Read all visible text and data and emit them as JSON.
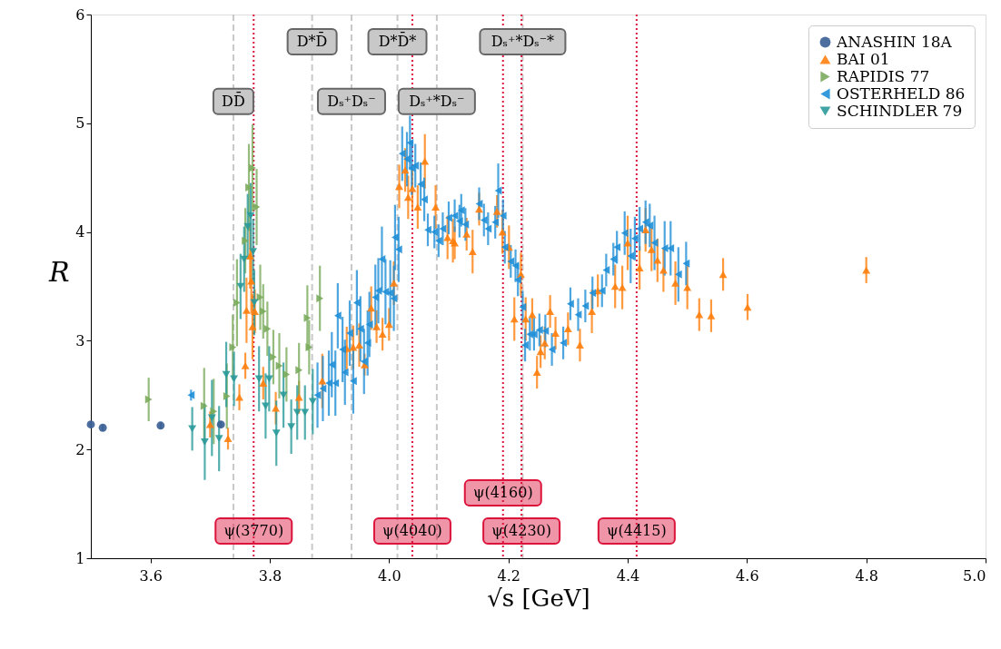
{
  "chart_data": {
    "type": "scatter",
    "xlabel": "√s [GeV]",
    "ylabel": "R",
    "xlim": [
      3.5,
      5.0
    ],
    "ylim": [
      1,
      6
    ],
    "xticks": [
      3.6,
      3.8,
      {
        "value": 4,
        "label": "4.0"
      },
      4.2,
      4.4,
      4.6,
      4.8,
      {
        "value": 5,
        "label": "5.0"
      }
    ],
    "yticks": [
      1,
      2,
      3,
      4,
      5,
      6
    ],
    "grid": false,
    "legend": "top right",
    "series": [
      {
        "name": "ANASHIN 18A",
        "color": "#3a5f95",
        "marker": "circle",
        "x": [
          3.5,
          3.52,
          3.617,
          3.718
        ],
        "values": [
          2.23,
          2.2,
          2.22,
          2.23
        ],
        "errors": [
          0.03,
          0.03,
          0.03,
          0.03
        ]
      },
      {
        "name": "BAI 01",
        "color": "#ff7f0e",
        "marker": "triangle-up",
        "x": [
          3.7,
          3.73,
          3.749,
          3.759,
          3.761,
          3.767,
          3.769,
          3.771,
          3.775,
          3.789,
          3.81,
          3.849,
          3.888,
          3.929,
          3.94,
          3.95,
          3.959,
          3.97,
          3.979,
          3.989,
          4.0,
          4.008,
          4.017,
          4.027,
          4.032,
          4.039,
          4.048,
          4.06,
          4.078,
          4.098,
          4.107,
          4.11,
          4.13,
          4.14,
          4.151,
          4.181,
          4.19,
          4.201,
          4.21,
          4.221,
          4.229,
          4.24,
          4.248,
          4.254,
          4.261,
          4.27,
          4.279,
          4.3,
          4.32,
          4.34,
          4.35,
          4.379,
          4.391,
          4.4,
          4.42,
          4.43,
          4.44,
          4.45,
          4.46,
          4.48,
          4.5,
          4.52,
          4.54,
          4.56,
          4.601,
          4.8
        ],
        "values": [
          2.23,
          2.1,
          2.48,
          2.77,
          3.28,
          3.78,
          3.55,
          3.13,
          3.27,
          2.61,
          2.38,
          2.48,
          2.63,
          2.93,
          2.94,
          2.96,
          2.78,
          3.3,
          3.13,
          3.06,
          3.15,
          3.53,
          4.42,
          4.57,
          4.32,
          4.4,
          4.23,
          4.65,
          4.23,
          3.95,
          3.92,
          3.9,
          3.98,
          3.82,
          4.21,
          4.19,
          4.0,
          3.86,
          3.2,
          3.61,
          3.2,
          3.24,
          2.71,
          2.9,
          2.98,
          3.27,
          3.07,
          3.11,
          2.96,
          3.27,
          3.46,
          3.5,
          3.49,
          3.9,
          3.67,
          4.02,
          3.84,
          3.74,
          3.65,
          3.53,
          3.49,
          3.24,
          3.23,
          3.61,
          3.31,
          3.65
        ],
        "errors": [
          0.12,
          0.1,
          0.12,
          0.12,
          0.3,
          0.3,
          0.3,
          0.3,
          0.2,
          0.15,
          0.15,
          0.15,
          0.25,
          0.2,
          0.2,
          0.2,
          0.1,
          0.2,
          0.15,
          0.15,
          0.15,
          0.2,
          0.2,
          0.2,
          0.2,
          0.2,
          0.2,
          0.25,
          0.2,
          0.2,
          0.2,
          0.15,
          0.15,
          0.2,
          0.15,
          0.15,
          0.2,
          0.2,
          0.2,
          0.2,
          0.2,
          0.15,
          0.15,
          0.15,
          0.15,
          0.15,
          0.15,
          0.15,
          0.15,
          0.2,
          0.15,
          0.2,
          0.2,
          0.25,
          0.2,
          0.2,
          0.2,
          0.2,
          0.2,
          0.2,
          0.2,
          0.15,
          0.15,
          0.15,
          0.12,
          0.12
        ]
      },
      {
        "name": "RAPIDIS 77",
        "color": "#7aab5c",
        "marker": "triangle-right",
        "x": [
          3.597,
          3.69,
          3.706,
          3.728,
          3.738,
          3.745,
          3.759,
          3.765,
          3.771,
          3.778,
          3.784,
          3.789,
          3.796,
          3.806,
          3.816,
          3.828,
          3.849,
          3.863,
          3.866,
          3.884
        ],
        "values": [
          2.46,
          2.4,
          2.35,
          2.49,
          2.94,
          3.35,
          3.92,
          4.41,
          4.59,
          4.23,
          3.4,
          3.27,
          3.11,
          2.85,
          2.77,
          2.69,
          2.73,
          3.21,
          2.94,
          3.39
        ],
        "errors": [
          0.2,
          0.35,
          0.3,
          0.3,
          0.3,
          0.4,
          0.3,
          0.4,
          0.4,
          0.35,
          0.3,
          0.25,
          0.25,
          0.25,
          0.3,
          0.25,
          0.25,
          0.3,
          0.25,
          0.3
        ]
      },
      {
        "name": "OSTERHELD 86",
        "color": "#1f8fd7",
        "marker": "triangle-left",
        "x": [
          3.668,
          3.88,
          3.889,
          3.899,
          3.904,
          3.91,
          3.914,
          3.922,
          3.926,
          3.934,
          3.94,
          3.946,
          3.952,
          3.958,
          3.964,
          3.967,
          3.977,
          3.982,
          3.988,
          3.994,
          4.002,
          4.008,
          4.01,
          4.016,
          4.022,
          4.03,
          4.035,
          4.038,
          4.044,
          4.053,
          4.059,
          4.065,
          4.076,
          4.083,
          4.09,
          4.1,
          4.11,
          4.118,
          4.121,
          4.128,
          4.151,
          4.159,
          4.166,
          4.178,
          4.183,
          4.191,
          4.194,
          4.204,
          4.212,
          4.216,
          4.224,
          4.228,
          4.236,
          4.243,
          4.252,
          4.262,
          4.273,
          4.292,
          4.304,
          4.317,
          4.329,
          4.341,
          4.357,
          4.364,
          4.376,
          4.382,
          4.395,
          4.405,
          4.412,
          4.42,
          4.43,
          4.437,
          4.445,
          4.462,
          4.472,
          4.485,
          4.498
        ],
        "values": [
          2.5,
          2.5,
          2.56,
          2.61,
          2.78,
          2.61,
          3.23,
          2.92,
          2.71,
          3.07,
          2.63,
          3.35,
          3.11,
          2.81,
          2.98,
          3.15,
          3.4,
          3.46,
          3.75,
          3.45,
          3.44,
          3.39,
          3.95,
          3.84,
          4.72,
          4.67,
          4.82,
          4.59,
          4.61,
          4.44,
          4.3,
          4.02,
          4.0,
          3.92,
          4.03,
          4.13,
          4.15,
          4.1,
          4.2,
          4.07,
          4.26,
          4.11,
          4.03,
          4.09,
          4.38,
          4.15,
          3.86,
          3.73,
          3.69,
          3.56,
          3.31,
          2.96,
          3.06,
          3.06,
          3.1,
          3.09,
          2.92,
          2.98,
          3.34,
          3.24,
          3.32,
          3.44,
          3.46,
          3.65,
          3.75,
          3.86,
          3.99,
          3.78,
          3.94,
          4.03,
          4.09,
          4.06,
          3.9,
          3.85,
          3.85,
          3.61,
          3.71
        ],
        "errors": [
          0.05,
          0.3,
          0.3,
          0.3,
          0.3,
          0.3,
          0.3,
          0.3,
          0.3,
          0.3,
          0.3,
          0.3,
          0.3,
          0.3,
          0.3,
          0.3,
          0.3,
          0.3,
          0.3,
          0.3,
          0.3,
          0.3,
          0.3,
          0.3,
          0.25,
          0.25,
          0.25,
          0.25,
          0.2,
          0.2,
          0.2,
          0.15,
          0.15,
          0.15,
          0.15,
          0.15,
          0.15,
          0.15,
          0.15,
          0.15,
          0.15,
          0.15,
          0.15,
          0.15,
          0.25,
          0.15,
          0.15,
          0.15,
          0.15,
          0.15,
          0.15,
          0.15,
          0.15,
          0.15,
          0.15,
          0.15,
          0.15,
          0.15,
          0.15,
          0.15,
          0.15,
          0.15,
          0.15,
          0.15,
          0.15,
          0.15,
          0.2,
          0.25,
          0.2,
          0.2,
          0.2,
          0.2,
          0.25,
          0.25,
          0.25,
          0.25,
          0.2
        ]
      },
      {
        "name": "SCHINDLER 79",
        "color": "#2b9a9a",
        "marker": "triangle-down",
        "x": [
          3.67,
          3.691,
          3.703,
          3.715,
          3.727,
          3.74,
          3.751,
          3.757,
          3.763,
          3.768,
          3.772,
          3.774,
          3.782,
          3.793,
          3.799,
          3.811,
          3.823,
          3.836,
          3.846,
          3.859,
          3.872
        ],
        "values": [
          2.19,
          2.07,
          2.29,
          2.1,
          2.69,
          2.65,
          3.5,
          3.75,
          4.05,
          4.15,
          3.82,
          3.35,
          2.65,
          2.4,
          2.65,
          2.15,
          2.5,
          2.21,
          2.34,
          2.34,
          2.44
        ],
        "errors": [
          0.2,
          0.35,
          0.35,
          0.3,
          0.3,
          0.25,
          0.3,
          0.3,
          0.3,
          0.3,
          0.3,
          0.3,
          0.3,
          0.3,
          0.3,
          0.3,
          0.3,
          0.25,
          0.25,
          0.25,
          0.3
        ]
      }
    ],
    "ref_lines": [
      {
        "axis": "x",
        "value": 3.739,
        "label": "DD̄",
        "color": "#c8c8c8",
        "line_style": "dashed"
      },
      {
        "axis": "x",
        "value": 3.871,
        "label": "D*D̄",
        "color": "#c8c8c8",
        "line_style": "dashed"
      },
      {
        "axis": "x",
        "value": 3.937,
        "label": "Dₛ⁺Dₛ⁻",
        "color": "#c8c8c8",
        "line_style": "dashed"
      },
      {
        "axis": "x",
        "value": 4.014,
        "label": "D*D̄*",
        "color": "#c8c8c8",
        "line_style": "dashed"
      },
      {
        "axis": "x",
        "value": 4.08,
        "label": "Dₛ⁺*Dₛ⁻",
        "color": "#c8c8c8",
        "line_style": "dashed"
      },
      {
        "axis": "x",
        "value": 4.224,
        "label": "Dₛ⁺*Dₛ⁻*",
        "color": "#c8c8c8",
        "line_style": "dashed"
      },
      {
        "axis": "x",
        "value": 3.773,
        "label": "ψ(3770)",
        "color": "#dc143c",
        "line_style": "dotted"
      },
      {
        "axis": "x",
        "value": 4.039,
        "label": "ψ(4040)",
        "color": "#dc143c",
        "line_style": "dotted"
      },
      {
        "axis": "x",
        "value": 4.191,
        "label": "ψ(4160)",
        "color": "#dc143c",
        "line_style": "dotted"
      },
      {
        "axis": "x",
        "value": 4.222,
        "label": "ψ(4230)",
        "color": "#dc143c",
        "line_style": "dotted"
      },
      {
        "axis": "x",
        "value": 4.415,
        "label": "ψ(4415)",
        "color": "#dc143c",
        "line_style": "dotted"
      }
    ]
  }
}
